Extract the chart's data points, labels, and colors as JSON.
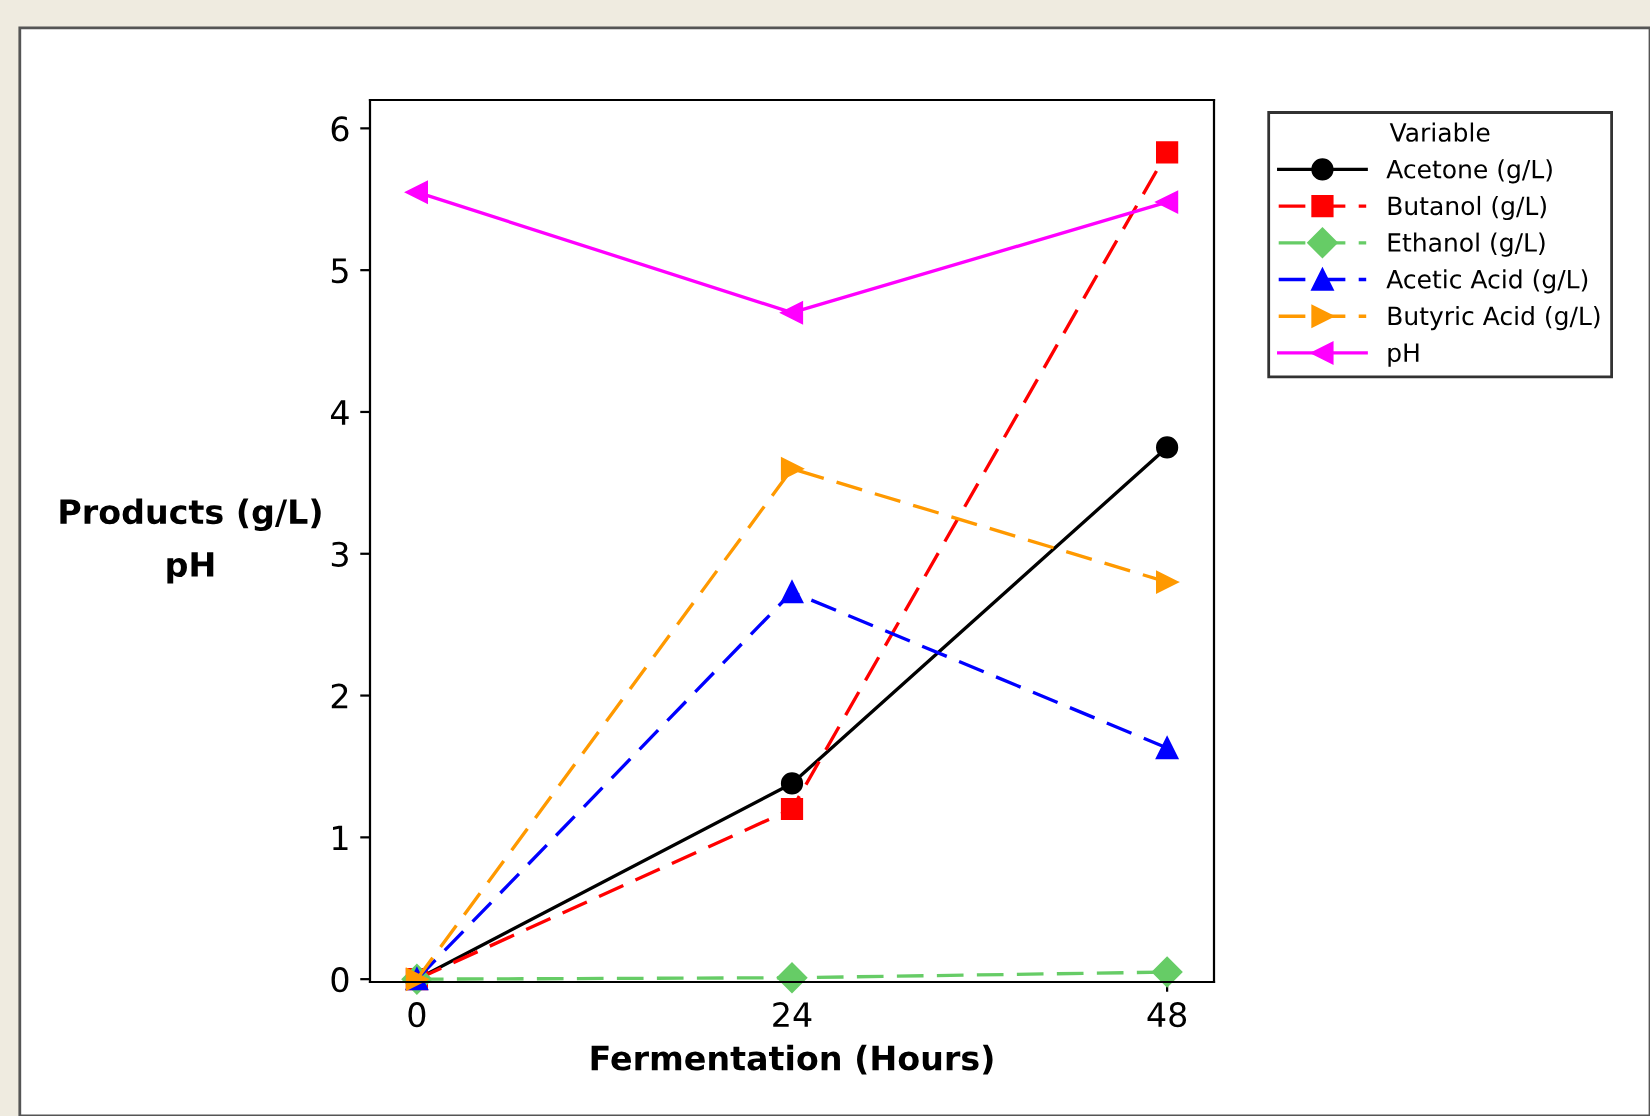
{
  "chart_data": {
    "type": "line",
    "xlabel": "Fermentation (Hours)",
    "ylabel": "Products (g/L)\npH",
    "legend_title": "Variable",
    "x": [
      0,
      24,
      48
    ],
    "series": [
      {
        "name": "Acetone (g/L)",
        "color": "#000000",
        "values": [
          0,
          1.38,
          3.75
        ],
        "marker": "circle",
        "line_style": "solid"
      },
      {
        "name": "Butanol (g/L)",
        "color": "#ff0000",
        "values": [
          0,
          1.2,
          5.83
        ],
        "marker": "square",
        "line_style": "dashed"
      },
      {
        "name": "Ethanol (g/L)",
        "color": "#66cc66",
        "values": [
          0,
          0.01,
          0.05
        ],
        "marker": "diamond",
        "line_style": "dashed"
      },
      {
        "name": "Acetic Acid (g/L)",
        "color": "#0000ff",
        "values": [
          0,
          2.73,
          1.63
        ],
        "marker": "triangle",
        "line_style": "dashed"
      },
      {
        "name": "Butyric Acid (g/L)",
        "color": "#ff9900",
        "values": [
          0,
          3.6,
          2.8
        ],
        "marker": "triangle-right",
        "line_style": "dashed"
      },
      {
        "name": "pH",
        "color": "#ff00ff",
        "values": [
          5.55,
          4.7,
          5.48
        ],
        "marker": "triangle-left",
        "line_style": "solid"
      }
    ],
    "xlim": [
      -3,
      51
    ],
    "xticks": [
      0,
      24,
      48
    ],
    "ylim": [
      -0.02,
      6.2
    ],
    "yticks": [
      0,
      1,
      2,
      3,
      4,
      5,
      6
    ],
    "grid": false,
    "legend": "top right"
  }
}
